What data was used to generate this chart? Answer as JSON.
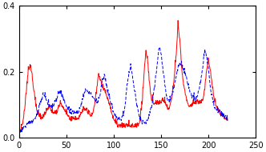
{
  "xlim": [
    0,
    250
  ],
  "ylim": [
    0,
    0.4
  ],
  "xticks": [
    0,
    50,
    100,
    150,
    200,
    250
  ],
  "yticks": [
    0,
    0.2,
    0.4
  ],
  "red_color": "#ff0000",
  "blue_color": "#0000ff",
  "red_linewidth": 0.7,
  "blue_linewidth": 0.7,
  "figsize": [
    3.32,
    1.9
  ],
  "dpi": 100,
  "red_x": [
    0,
    2,
    4,
    6,
    8,
    10,
    12,
    14,
    16,
    18,
    20,
    22,
    24,
    26,
    28,
    30,
    32,
    34,
    36,
    38,
    40,
    42,
    44,
    46,
    48,
    50,
    52,
    54,
    56,
    58,
    60,
    62,
    64,
    66,
    68,
    70,
    72,
    74,
    76,
    78,
    80,
    82,
    84,
    86,
    88,
    90,
    92,
    94,
    96,
    98,
    100,
    102,
    104,
    106,
    108,
    110,
    112,
    114,
    116,
    118,
    120,
    122,
    124,
    126,
    128,
    130,
    132,
    134,
    136,
    138,
    140,
    142,
    144,
    146,
    148,
    150,
    152,
    154,
    156,
    158,
    160,
    162,
    164,
    166,
    168,
    170,
    172,
    174,
    176,
    178,
    180,
    182,
    184,
    186,
    188,
    190,
    192,
    194,
    196,
    198,
    200,
    202,
    204,
    206,
    208,
    210,
    212,
    214,
    216,
    218,
    220
  ],
  "red_y": [
    0.01,
    0.02,
    0.04,
    0.08,
    0.14,
    0.2,
    0.21,
    0.18,
    0.13,
    0.09,
    0.07,
    0.06,
    0.05,
    0.06,
    0.07,
    0.08,
    0.09,
    0.08,
    0.07,
    0.07,
    0.07,
    0.09,
    0.1,
    0.09,
    0.08,
    0.07,
    0.06,
    0.05,
    0.05,
    0.05,
    0.05,
    0.05,
    0.06,
    0.07,
    0.08,
    0.08,
    0.07,
    0.07,
    0.06,
    0.07,
    0.1,
    0.14,
    0.19,
    0.17,
    0.15,
    0.14,
    0.13,
    0.11,
    0.09,
    0.07,
    0.05,
    0.04,
    0.03,
    0.03,
    0.03,
    0.03,
    0.03,
    0.03,
    0.03,
    0.03,
    0.03,
    0.03,
    0.03,
    0.03,
    0.05,
    0.1,
    0.19,
    0.26,
    0.22,
    0.15,
    0.11,
    0.1,
    0.1,
    0.1,
    0.1,
    0.1,
    0.11,
    0.1,
    0.09,
    0.08,
    0.1,
    0.13,
    0.18,
    0.25,
    0.34,
    0.28,
    0.2,
    0.15,
    0.12,
    0.1,
    0.09,
    0.09,
    0.1,
    0.1,
    0.1,
    0.1,
    0.1,
    0.11,
    0.14,
    0.2,
    0.23,
    0.2,
    0.15,
    0.11,
    0.09,
    0.08,
    0.07,
    0.06,
    0.06,
    0.05,
    0.05
  ],
  "blue_x": [
    0,
    2,
    4,
    6,
    8,
    10,
    12,
    14,
    16,
    18,
    20,
    22,
    24,
    26,
    28,
    30,
    32,
    34,
    36,
    38,
    40,
    42,
    44,
    46,
    48,
    50,
    52,
    54,
    56,
    58,
    60,
    62,
    64,
    66,
    68,
    70,
    72,
    74,
    76,
    78,
    80,
    82,
    84,
    86,
    88,
    90,
    92,
    94,
    96,
    98,
    100,
    102,
    104,
    106,
    108,
    110,
    112,
    114,
    116,
    118,
    120,
    122,
    124,
    126,
    128,
    130,
    132,
    134,
    136,
    138,
    140,
    142,
    144,
    146,
    148,
    150,
    152,
    154,
    156,
    158,
    160,
    162,
    164,
    166,
    168,
    170,
    172,
    174,
    176,
    178,
    180,
    182,
    184,
    186,
    188,
    190,
    192,
    194,
    196,
    198,
    200,
    202,
    204,
    206,
    208,
    210,
    212,
    214,
    216,
    218,
    220
  ],
  "blue_y": [
    0.01,
    0.01,
    0.02,
    0.03,
    0.03,
    0.04,
    0.04,
    0.04,
    0.05,
    0.06,
    0.07,
    0.09,
    0.11,
    0.13,
    0.12,
    0.1,
    0.09,
    0.09,
    0.09,
    0.1,
    0.11,
    0.13,
    0.13,
    0.12,
    0.1,
    0.09,
    0.08,
    0.07,
    0.07,
    0.07,
    0.07,
    0.07,
    0.08,
    0.1,
    0.12,
    0.14,
    0.14,
    0.13,
    0.13,
    0.12,
    0.11,
    0.1,
    0.11,
    0.13,
    0.17,
    0.18,
    0.16,
    0.13,
    0.11,
    0.09,
    0.07,
    0.06,
    0.05,
    0.05,
    0.05,
    0.06,
    0.09,
    0.15,
    0.19,
    0.21,
    0.18,
    0.14,
    0.1,
    0.07,
    0.05,
    0.04,
    0.04,
    0.04,
    0.05,
    0.07,
    0.09,
    0.12,
    0.17,
    0.22,
    0.27,
    0.25,
    0.2,
    0.15,
    0.12,
    0.1,
    0.11,
    0.13,
    0.15,
    0.18,
    0.21,
    0.22,
    0.21,
    0.2,
    0.18,
    0.16,
    0.14,
    0.12,
    0.11,
    0.11,
    0.12,
    0.14,
    0.17,
    0.21,
    0.26,
    0.24,
    0.2,
    0.15,
    0.11,
    0.09,
    0.08,
    0.07,
    0.07,
    0.06,
    0.06,
    0.06,
    0.05
  ]
}
